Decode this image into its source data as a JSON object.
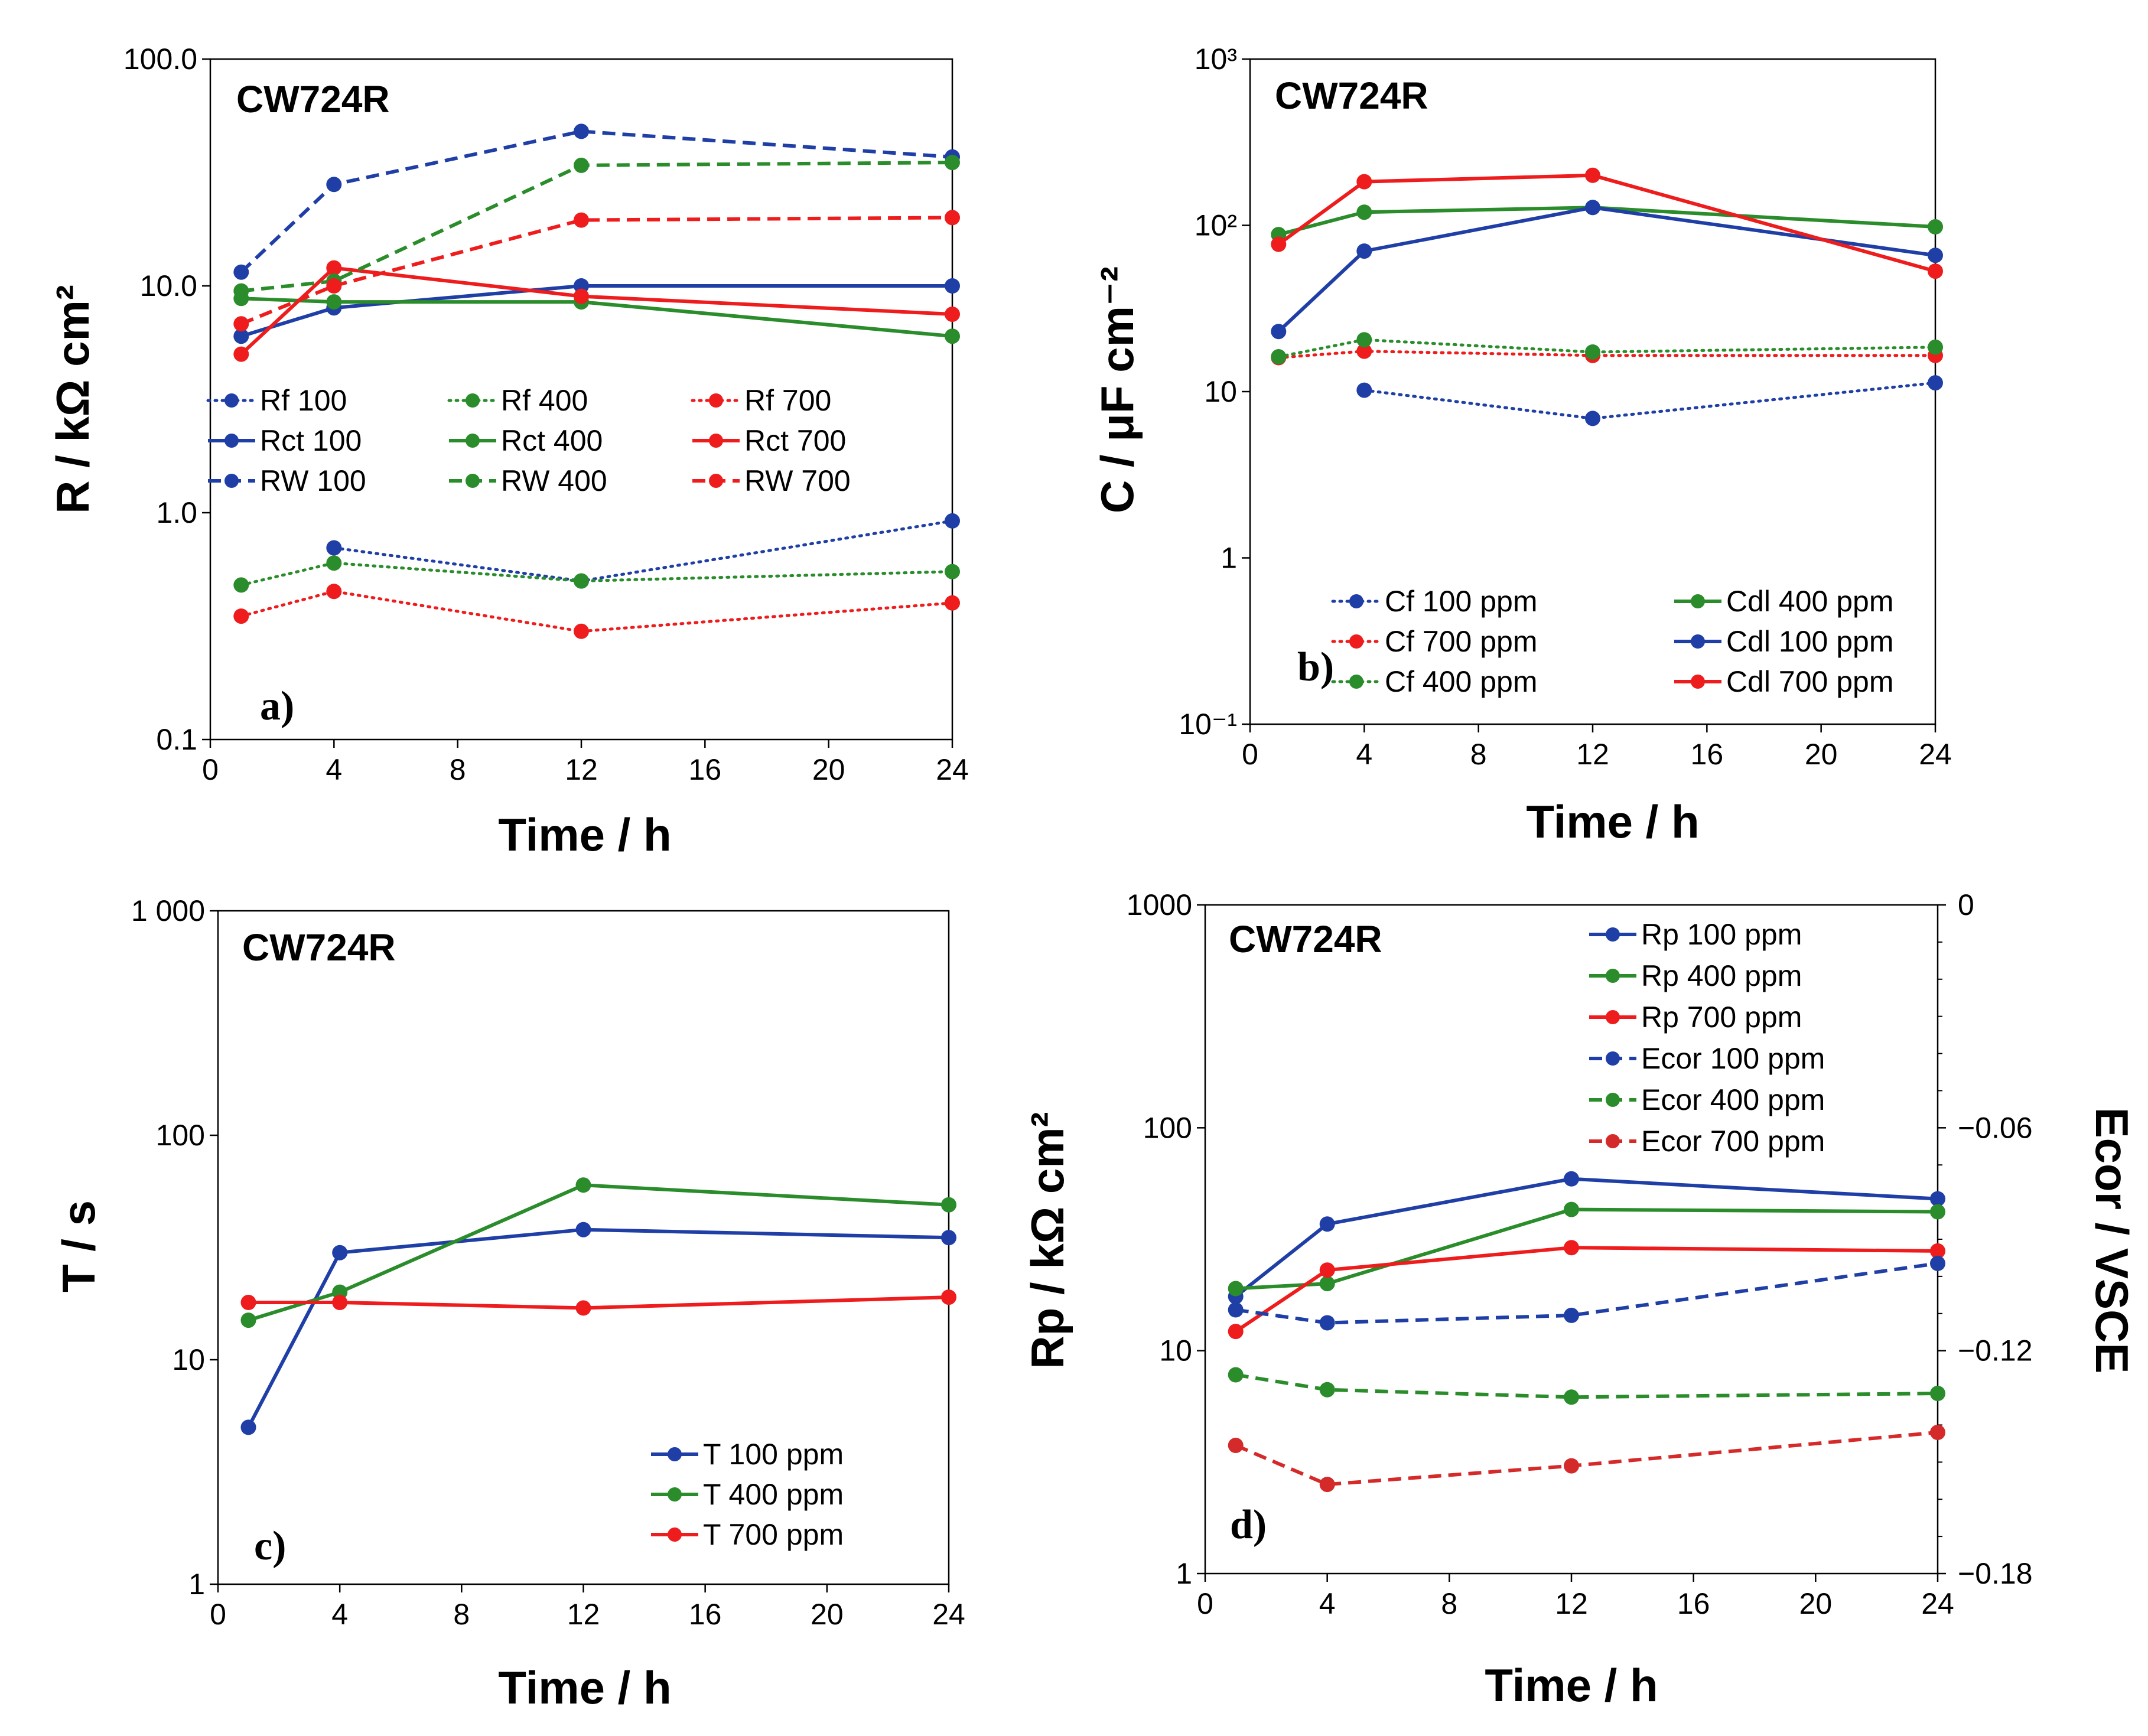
{
  "chart_data": [
    {
      "id": "a",
      "type": "line",
      "panel_label": "a)",
      "tag": "CW724R",
      "xlabel": "Time / h",
      "ylabel": "R / kΩ cm²",
      "yscale": "log",
      "xlim": [
        0,
        24
      ],
      "ylim": [
        0.1,
        100
      ],
      "xticks": [
        0,
        4,
        8,
        12,
        16,
        20,
        24
      ],
      "yticks": [
        0.1,
        1,
        10,
        100
      ],
      "ytick_labels": [
        "0.1",
        "1.0",
        "10.0",
        "100.0"
      ],
      "legend_columns": 3,
      "legend_placement": "center-left",
      "series": [
        {
          "name": "Rf 100",
          "color": "#1f3fa6",
          "style": "dotted",
          "x": [
            4,
            12,
            24
          ],
          "y": [
            0.7,
            0.5,
            0.92
          ]
        },
        {
          "name": "Rf 400",
          "color": "#2a8c2a",
          "style": "dotted",
          "x": [
            1,
            4,
            12,
            24
          ],
          "y": [
            0.48,
            0.6,
            0.5,
            0.55
          ]
        },
        {
          "name": "Rf 700",
          "color": "#ee1c1c",
          "style": "dotted",
          "x": [
            1,
            4,
            12,
            24
          ],
          "y": [
            0.35,
            0.45,
            0.3,
            0.4
          ]
        },
        {
          "name": "Rct 100",
          "color": "#1f3fa6",
          "style": "solid",
          "x": [
            1,
            4,
            12,
            24
          ],
          "y": [
            6,
            8,
            10,
            10
          ]
        },
        {
          "name": "Rct 400",
          "color": "#2a8c2a",
          "style": "solid",
          "x": [
            1,
            4,
            12,
            24
          ],
          "y": [
            8.8,
            8.5,
            8.5,
            6
          ]
        },
        {
          "name": "Rct 700",
          "color": "#ee1c1c",
          "style": "solid",
          "x": [
            1,
            4,
            12,
            24
          ],
          "y": [
            5,
            12,
            9,
            7.5
          ]
        },
        {
          "name": "RW 100",
          "color": "#1f3fa6",
          "style": "dashed",
          "x": [
            1,
            4,
            12,
            24
          ],
          "y": [
            11.5,
            28,
            48,
            37
          ]
        },
        {
          "name": "RW 400",
          "color": "#2a8c2a",
          "style": "dashed",
          "x": [
            1,
            4,
            12,
            24
          ],
          "y": [
            9.5,
            10.5,
            34,
            35
          ]
        },
        {
          "name": "RW 700",
          "color": "#ee1c1c",
          "style": "dashed",
          "x": [
            1,
            4,
            12,
            24
          ],
          "y": [
            6.8,
            10,
            19.5,
            20
          ]
        }
      ]
    },
    {
      "id": "b",
      "type": "line",
      "panel_label": "b)",
      "tag": "CW724R",
      "xlabel": "Time / h",
      "ylabel": "C / μF cm⁻²",
      "yscale": "log",
      "xlim": [
        0,
        24
      ],
      "ylim": [
        0.1,
        1000
      ],
      "xticks": [
        0,
        4,
        8,
        12,
        16,
        20,
        24
      ],
      "yticks": [
        0.1,
        1,
        10,
        100,
        1000
      ],
      "ytick_labels": [
        "10⁻¹",
        "1",
        "10",
        "10²",
        "10³"
      ],
      "legend_columns": 2,
      "legend_placement": "bottom-right",
      "series": [
        {
          "name": "Cf 100 ppm",
          "color": "#1f3fa6",
          "style": "dotted",
          "x": [
            4,
            12,
            24
          ],
          "y": [
            10.2,
            6.9,
            11.3
          ]
        },
        {
          "name": "Cf 700 ppm",
          "color": "#ee1c1c",
          "style": "dotted",
          "x": [
            1,
            4,
            12,
            24
          ],
          "y": [
            16,
            17.5,
            16.5,
            16.5
          ]
        },
        {
          "name": "Cf 400 ppm",
          "color": "#2a8c2a",
          "style": "dotted",
          "x": [
            1,
            4,
            12,
            24
          ],
          "y": [
            16.2,
            20.5,
            17.3,
            18.5
          ]
        },
        {
          "name": "Cdl 400 ppm",
          "color": "#2a8c2a",
          "style": "solid",
          "x": [
            1,
            4,
            12,
            24
          ],
          "y": [
            88,
            120,
            128,
            98
          ]
        },
        {
          "name": "Cdl 100 ppm",
          "color": "#1f3fa6",
          "style": "solid",
          "x": [
            1,
            4,
            12,
            24
          ],
          "y": [
            23,
            70,
            128,
            66
          ]
        },
        {
          "name": "Cdl 700 ppm",
          "color": "#ee1c1c",
          "style": "solid",
          "x": [
            1,
            4,
            12,
            24
          ],
          "y": [
            77,
            183,
            200,
            53
          ]
        }
      ]
    },
    {
      "id": "c",
      "type": "line",
      "panel_label": "c)",
      "tag": "CW724R",
      "xlabel": "Time / h",
      "ylabel": "T / s",
      "yscale": "log",
      "xlim": [
        0,
        24
      ],
      "ylim": [
        1,
        1000
      ],
      "xticks": [
        0,
        4,
        8,
        12,
        16,
        20,
        24
      ],
      "yticks": [
        1,
        10,
        100,
        1000
      ],
      "ytick_labels": [
        "1",
        "10",
        "100",
        "1 000"
      ],
      "legend_columns": 1,
      "legend_placement": "bottom-right",
      "series": [
        {
          "name": "T 100 ppm",
          "color": "#1f3fa6",
          "style": "solid",
          "x": [
            1,
            4,
            12,
            24
          ],
          "y": [
            5,
            30,
            38,
            35
          ]
        },
        {
          "name": "T 400 ppm",
          "color": "#2a8c2a",
          "style": "solid",
          "x": [
            1,
            4,
            12,
            24
          ],
          "y": [
            15,
            20,
            60,
            49
          ]
        },
        {
          "name": "T 700 ppm",
          "color": "#ee1c1c",
          "style": "solid",
          "x": [
            1,
            4,
            12,
            24
          ],
          "y": [
            18,
            18,
            17,
            19
          ]
        }
      ]
    },
    {
      "id": "d",
      "type": "line",
      "panel_label": "d)",
      "tag": "CW724R",
      "xlabel": "Time / h",
      "ylabel": "Rp / kΩ cm²",
      "y2label": "Ecor / VSCE",
      "yscale": "log",
      "xlim": [
        0,
        24
      ],
      "ylim": [
        1,
        1000
      ],
      "y2lim": [
        -0.18,
        0
      ],
      "xticks": [
        0,
        4,
        8,
        12,
        16,
        20,
        24
      ],
      "yticks": [
        1,
        10,
        100,
        1000
      ],
      "ytick_labels": [
        "1",
        "10",
        "100",
        "1000"
      ],
      "y2ticks": [
        -0.18,
        -0.12,
        -0.06,
        0
      ],
      "y2tick_labels": [
        "−0.18",
        "−0.12",
        "−0.06",
        "0"
      ],
      "legend_columns": 1,
      "legend_placement": "top-right",
      "series": [
        {
          "name": "Rp 100 ppm",
          "color": "#1f3fa6",
          "style": "solid",
          "axis": "left",
          "x": [
            1,
            4,
            12,
            24
          ],
          "y": [
            17.5,
            37,
            59,
            48
          ]
        },
        {
          "name": "Rp 400 ppm",
          "color": "#2a8c2a",
          "style": "solid",
          "axis": "left",
          "x": [
            1,
            4,
            12,
            24
          ],
          "y": [
            19,
            20,
            43,
            42
          ]
        },
        {
          "name": "Rp 700 ppm",
          "color": "#ee1c1c",
          "style": "solid",
          "axis": "left",
          "x": [
            1,
            4,
            12,
            24
          ],
          "y": [
            12.2,
            23,
            29,
            28
          ]
        },
        {
          "name": "Ecor 100 ppm",
          "color": "#1f3fa6",
          "style": "dashed",
          "axis": "right",
          "x": [
            1,
            4,
            12,
            24
          ],
          "y": [
            -0.109,
            -0.1125,
            -0.1105,
            -0.0965
          ]
        },
        {
          "name": "Ecor 400 ppm",
          "color": "#2a8c2a",
          "style": "dashed",
          "axis": "right",
          "x": [
            1,
            4,
            12,
            24
          ],
          "y": [
            -0.1265,
            -0.1305,
            -0.1325,
            -0.1315
          ]
        },
        {
          "name": "Ecor 700 ppm",
          "color": "#d42a2a",
          "style": "dashed",
          "axis": "right",
          "x": [
            1,
            4,
            12,
            24
          ],
          "y": [
            -0.1455,
            -0.156,
            -0.151,
            -0.142
          ]
        }
      ]
    }
  ]
}
